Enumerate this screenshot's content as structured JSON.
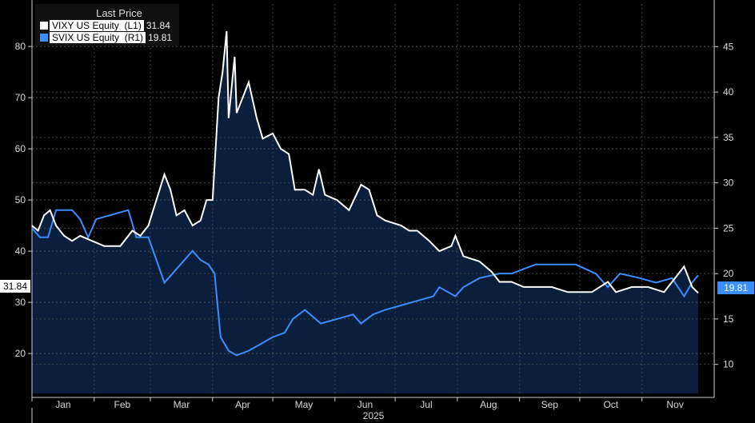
{
  "chart_data": {
    "type": "line",
    "title": "",
    "legend_title": "Last Price",
    "legend_position": "top-left",
    "xlabel": "2025",
    "x_unit": "day of year 2025",
    "xlim": [
      0,
      340
    ],
    "x_ticks": [
      {
        "day": 0,
        "label": "Jan"
      },
      {
        "day": 31,
        "label": "Feb"
      },
      {
        "day": 59,
        "label": "Mar"
      },
      {
        "day": 90,
        "label": "Apr"
      },
      {
        "day": 120,
        "label": "May"
      },
      {
        "day": 151,
        "label": "Jun"
      },
      {
        "day": 181,
        "label": "Jul"
      },
      {
        "day": 212,
        "label": "Aug"
      },
      {
        "day": 243,
        "label": "Sep"
      },
      {
        "day": 273,
        "label": "Oct"
      },
      {
        "day": 304,
        "label": "Nov"
      }
    ],
    "left_axis": {
      "ylim": [
        12.2,
        88.3
      ],
      "ticks": [
        20,
        30,
        40,
        50,
        60,
        70,
        80
      ]
    },
    "right_axis": {
      "ylim": [
        6.8,
        49.7
      ],
      "ticks": [
        10,
        15,
        20,
        25,
        30,
        35,
        40,
        45
      ]
    },
    "grid": true,
    "series": [
      {
        "name": "VIXY US Equity",
        "axis_label": "(L1)",
        "last": "31.84",
        "color": "#ffffff",
        "fill": "#0b1f3d",
        "axis": "left",
        "x": [
          0,
          3,
          6,
          9,
          12,
          16,
          20,
          24,
          30,
          36,
          44,
          50,
          54,
          58,
          62,
          66,
          69,
          72,
          76,
          80,
          84,
          87,
          90,
          93,
          95,
          97,
          98,
          101,
          102,
          105,
          108,
          112,
          115,
          120,
          124,
          128,
          131,
          136,
          140,
          143,
          146,
          152,
          158,
          164,
          168,
          172,
          176,
          184,
          188,
          192,
          198,
          203,
          209,
          211,
          215,
          223,
          229,
          233,
          239,
          245,
          251,
          259,
          267,
          279,
          287,
          291,
          299,
          307,
          315,
          321,
          325,
          329,
          332
        ],
        "y": [
          45,
          44,
          47,
          48,
          45,
          43,
          42,
          43,
          42,
          41,
          41,
          44,
          43,
          45,
          50,
          55,
          52,
          47,
          48,
          45,
          46,
          50,
          50,
          70,
          75,
          83,
          66,
          78,
          67,
          70,
          73,
          66,
          62,
          63,
          60,
          59,
          52,
          52,
          51,
          56,
          51,
          50,
          48,
          53,
          52,
          47,
          46,
          45,
          44,
          44,
          42,
          40,
          41,
          43,
          39,
          38,
          36,
          34,
          34,
          33,
          33,
          33,
          32,
          32,
          34,
          32,
          33,
          33,
          32,
          35,
          37,
          33,
          31.84
        ]
      },
      {
        "name": "SVIX US Equity",
        "axis_label": "(R1)",
        "last": "19.81",
        "color": "#3a8eff",
        "axis": "right",
        "x": [
          0,
          4,
          8,
          12,
          16,
          20,
          24,
          28,
          32,
          40,
          48,
          52,
          58,
          62,
          66,
          70,
          74,
          80,
          84,
          88,
          91,
          94,
          98,
          102,
          108,
          112,
          120,
          126,
          130,
          136,
          144,
          152,
          160,
          164,
          170,
          176,
          184,
          192,
          200,
          203,
          211,
          215,
          223,
          233,
          239,
          245,
          251,
          263,
          271,
          281,
          287,
          293,
          303,
          311,
          319,
          325,
          329,
          332
        ],
        "y": [
          25,
          24,
          24,
          27,
          27,
          27,
          26,
          24,
          26,
          26.5,
          27,
          24,
          24,
          21.5,
          19,
          20,
          21,
          22.5,
          21.5,
          21,
          20,
          13,
          11.5,
          11,
          11.5,
          12,
          13,
          13.5,
          15,
          16,
          14.5,
          15,
          15.5,
          14.5,
          15.5,
          16,
          16.5,
          17,
          17.5,
          18.5,
          17.5,
          18.5,
          19.5,
          20,
          20,
          20.5,
          21,
          21,
          21,
          20,
          18.5,
          20,
          19.5,
          19,
          19.5,
          17.5,
          19,
          19.81
        ]
      }
    ]
  }
}
